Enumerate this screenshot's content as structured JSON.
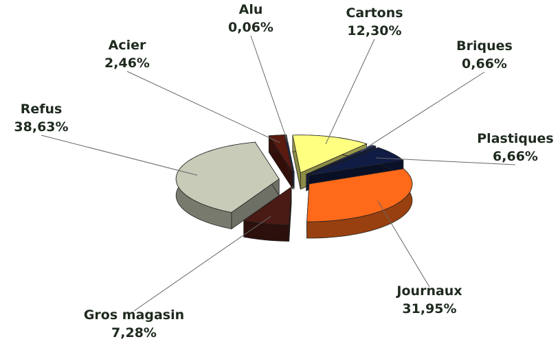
{
  "chart_data": {
    "type": "pie",
    "categories": [
      "Alu",
      "Cartons",
      "Briques",
      "Plastiques",
      "Journaux",
      "Gros magasin",
      "Refus",
      "Acier"
    ],
    "values": [
      0.06,
      12.3,
      0.66,
      6.66,
      31.95,
      7.28,
      38.63,
      2.46
    ],
    "value_labels": [
      "0,06%",
      "12,30%",
      "0,66%",
      "6,66%",
      "31,95%",
      "7,28%",
      "38,63%",
      "2,46%"
    ],
    "colors": [
      "#1f5fbf",
      "#ffff80",
      "#22305e",
      "#101c44",
      "#ff6a1a",
      "#4a1a14",
      "#c8cbb8",
      "#5a1a10"
    ]
  }
}
